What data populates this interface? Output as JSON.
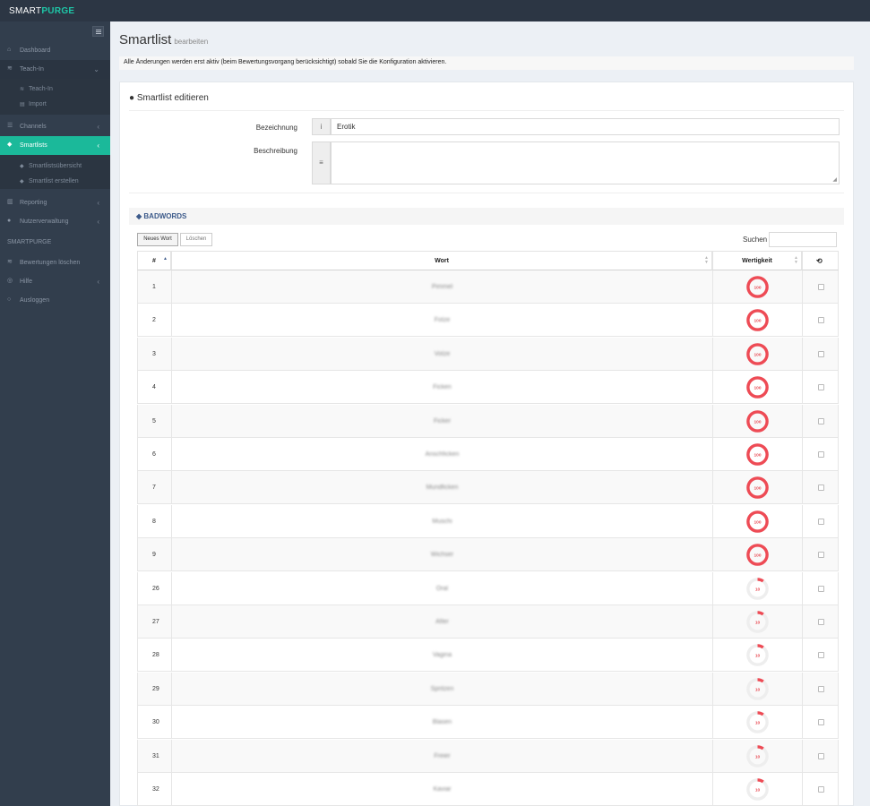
{
  "app": {
    "brand_light": "SMART",
    "brand_bold": "PURGE"
  },
  "colors": {
    "accent": "#1bb99a",
    "danger": "#ee4b55",
    "sidebar": "#323e4d",
    "topbar": "#2c3644"
  },
  "sidebar": {
    "items": [
      {
        "label": "Dashboard",
        "icon": "home-icon"
      },
      {
        "label": "Teach-In",
        "icon": "graduation-cap-icon"
      },
      {
        "label": "Teach-In",
        "icon": "graduation-cap-icon"
      },
      {
        "label": "Import",
        "icon": "file-icon"
      },
      {
        "label": "Channels",
        "icon": "sliders-icon"
      },
      {
        "label": "Smartlists",
        "icon": "tags-icon"
      },
      {
        "label": "Smartlistsübersicht",
        "icon": "tags-icon"
      },
      {
        "label": "Smartlist erstellen",
        "icon": "tags-icon"
      },
      {
        "label": "Reporting",
        "icon": "chart-icon"
      },
      {
        "label": "Nutzerverwaltung",
        "icon": "user-icon"
      }
    ],
    "section": "SMARTPURGE",
    "section_items": [
      {
        "label": "Bewertungen löschen",
        "icon": "graduation-cap-icon"
      },
      {
        "label": "Hilfe",
        "icon": "lifebuoy-icon"
      },
      {
        "label": "Ausloggen",
        "icon": "power-icon"
      }
    ]
  },
  "page": {
    "title": "Smartlist",
    "subtitle": "bearbeiten"
  },
  "notice": "Alle Änderungen werden erst aktiv (beim Bewertungsvorgang berücksichtigt) sobald Sie die Konfiguration aktivieren.",
  "form": {
    "title": "Smartlist editieren",
    "name_label": "Bezeichnung",
    "name_value": "Erotik",
    "desc_label": "Beschreibung",
    "desc_value": ""
  },
  "badwords": {
    "title": "BADWORDS",
    "new_button": "Neues Wort",
    "delete_button": "Löschen",
    "search_label": "Suchen",
    "columns": {
      "num": "#",
      "word": "Wort",
      "value": "Wertigkeit"
    },
    "rows": [
      {
        "num": "1",
        "word": "Pimmel",
        "value": 100
      },
      {
        "num": "2",
        "word": "Fotze",
        "value": 100
      },
      {
        "num": "3",
        "word": "Votze",
        "value": 100
      },
      {
        "num": "4",
        "word": "Ficken",
        "value": 100
      },
      {
        "num": "5",
        "word": "Ficker",
        "value": 100
      },
      {
        "num": "6",
        "word": "Anschficken",
        "value": 100
      },
      {
        "num": "7",
        "word": "Mundficken",
        "value": 100
      },
      {
        "num": "8",
        "word": "Muschi",
        "value": 100
      },
      {
        "num": "9",
        "word": "Wichser",
        "value": 100
      },
      {
        "num": "26",
        "word": "Oral",
        "value": 10
      },
      {
        "num": "27",
        "word": "After",
        "value": 10
      },
      {
        "num": "28",
        "word": "Vagina",
        "value": 10
      },
      {
        "num": "29",
        "word": "Spritzen",
        "value": 10
      },
      {
        "num": "30",
        "word": "Blasen",
        "value": 10
      },
      {
        "num": "31",
        "word": "Freier",
        "value": 10
      },
      {
        "num": "32",
        "word": "Kaviar",
        "value": 10
      }
    ]
  }
}
